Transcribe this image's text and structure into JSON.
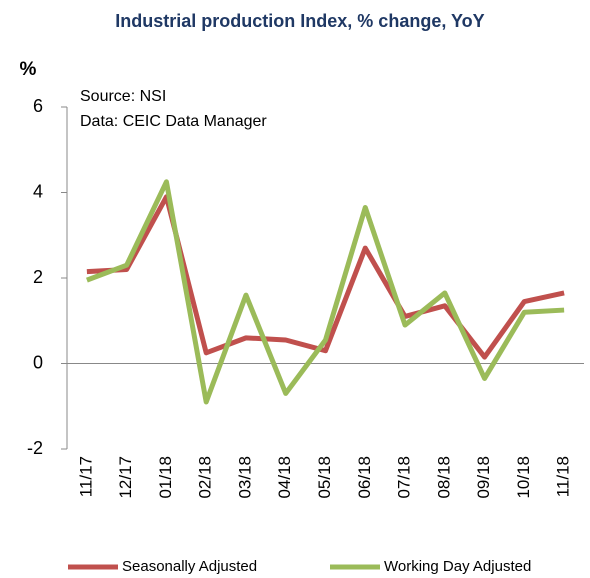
{
  "chart_data": {
    "type": "line",
    "title": "Industrial production Index, % change, YoY",
    "ylabel": "%",
    "annotations": [
      "Source: NSI",
      "Data: CEIC Data Manager"
    ],
    "categories": [
      "11/17",
      "12/17",
      "01/18",
      "02/18",
      "03/18",
      "04/18",
      "05/18",
      "06/18",
      "07/18",
      "08/18",
      "09/18",
      "10/18",
      "11/18"
    ],
    "series": [
      {
        "name": "Seasonally Adjusted",
        "color": "#c0504d",
        "values": [
          2.15,
          2.2,
          3.9,
          0.25,
          0.6,
          0.55,
          0.3,
          2.7,
          1.1,
          1.35,
          0.15,
          1.45,
          1.65
        ]
      },
      {
        "name": "Working Day Adjusted",
        "color": "#9bbb59",
        "values": [
          1.95,
          2.3,
          4.25,
          -0.9,
          1.6,
          -0.7,
          0.55,
          3.65,
          0.9,
          1.65,
          -0.35,
          1.2,
          1.25
        ]
      }
    ],
    "ylim": [
      -2,
      6
    ],
    "yticks": [
      -2,
      0,
      2,
      4,
      6
    ],
    "grid": false,
    "legend": "bottom"
  }
}
